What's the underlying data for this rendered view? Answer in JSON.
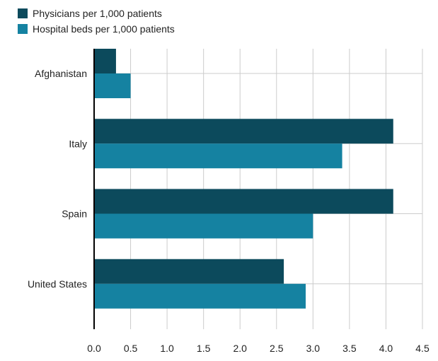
{
  "chart_data": {
    "type": "bar",
    "orientation": "horizontal",
    "title": "",
    "xlabel": "",
    "ylabel": "",
    "categories": [
      "Afghanistan",
      "Italy",
      "Spain",
      "United States"
    ],
    "series": [
      {
        "name": "Physicians per 1,000 patients",
        "color": "#0c4a5c",
        "values": [
          0.3,
          4.1,
          4.1,
          2.6
        ]
      },
      {
        "name": "Hospital beds per 1,000 patients",
        "color": "#1582a1",
        "values": [
          0.5,
          3.4,
          3.0,
          2.9
        ]
      }
    ],
    "xlim": [
      0,
      4.5
    ],
    "xticks": [
      "0.0",
      "0.5",
      "1.0",
      "1.5",
      "2.0",
      "2.5",
      "3.0",
      "3.5",
      "4.0",
      "4.5"
    ],
    "grid": true,
    "legend_position": "top-left"
  }
}
